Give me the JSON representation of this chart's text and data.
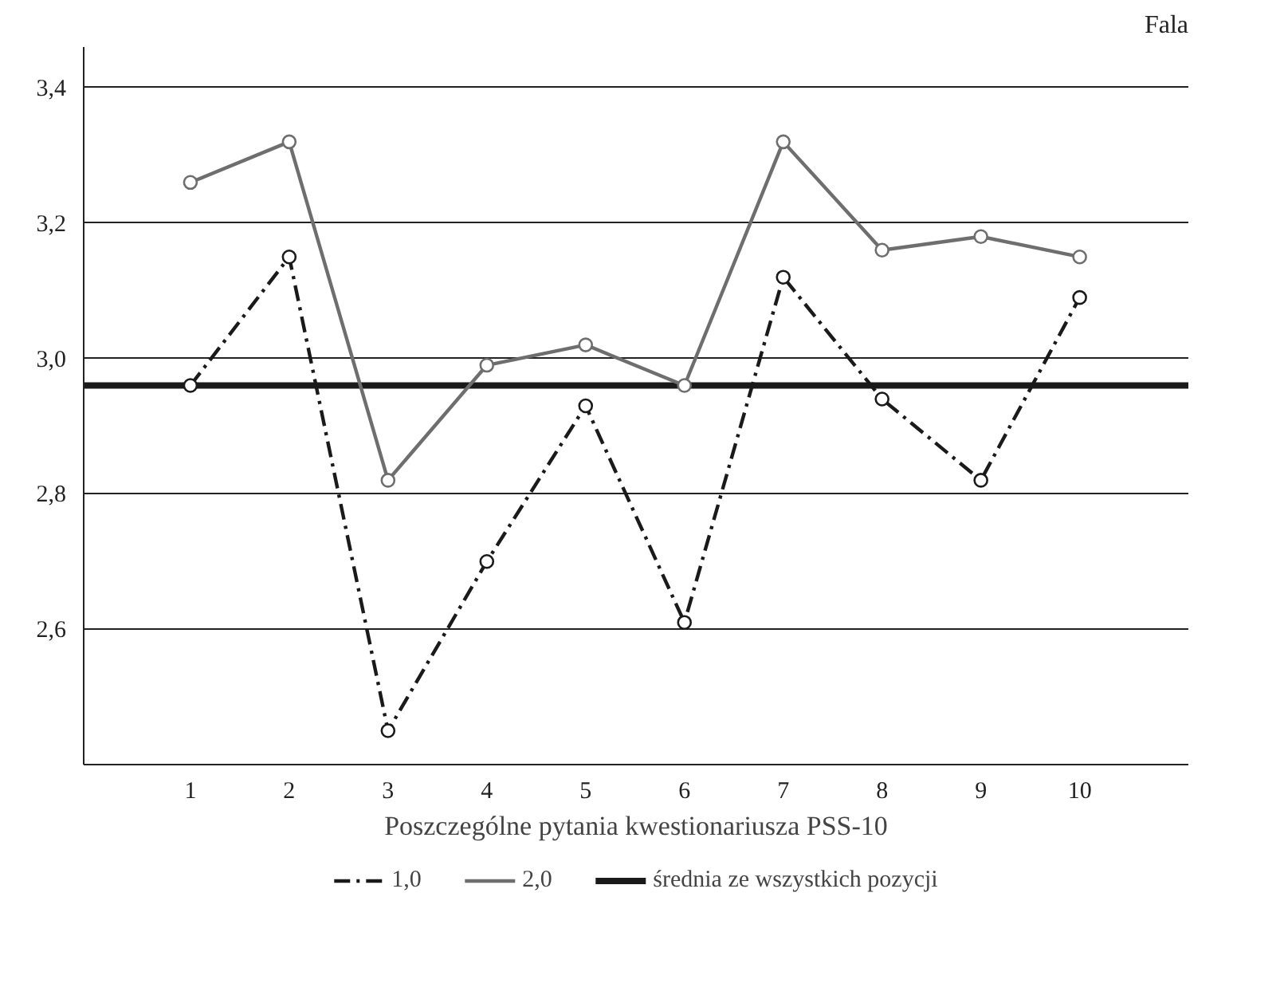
{
  "chart_data": {
    "type": "line",
    "xlabel": "Poszczególne pytania kwestionariusza PSS-10",
    "legend_title": "Fala",
    "categories": [
      "1",
      "2",
      "3",
      "4",
      "5",
      "6",
      "7",
      "8",
      "9",
      "10"
    ],
    "series": [
      {
        "name": "1,0",
        "color": "#1a1a1a",
        "line_style": "dashdot",
        "values": [
          2.96,
          3.15,
          2.45,
          2.7,
          2.93,
          2.61,
          3.12,
          2.94,
          2.82,
          3.09
        ]
      },
      {
        "name": "2,0",
        "color": "#6e6e6e",
        "line_style": "solid",
        "values": [
          3.26,
          3.32,
          2.82,
          2.99,
          3.02,
          2.96,
          3.32,
          3.16,
          3.18,
          3.15
        ]
      }
    ],
    "ref_lines": [
      {
        "axis": "y",
        "value": 2.96,
        "label": "średnia ze wszystkich pozycji",
        "color": "#1a1a1a",
        "line_style": "solid"
      }
    ],
    "ylim": [
      2.4,
      3.46
    ],
    "yticks": [
      {
        "value": 2.6,
        "label": "2,6"
      },
      {
        "value": 2.8,
        "label": "2,8"
      },
      {
        "value": 3.0,
        "label": "3,0"
      },
      {
        "value": 3.2,
        "label": "3,2"
      },
      {
        "value": 3.4,
        "label": "3,4"
      }
    ],
    "grid": "y",
    "legend": "bottom",
    "marker": "circle"
  }
}
